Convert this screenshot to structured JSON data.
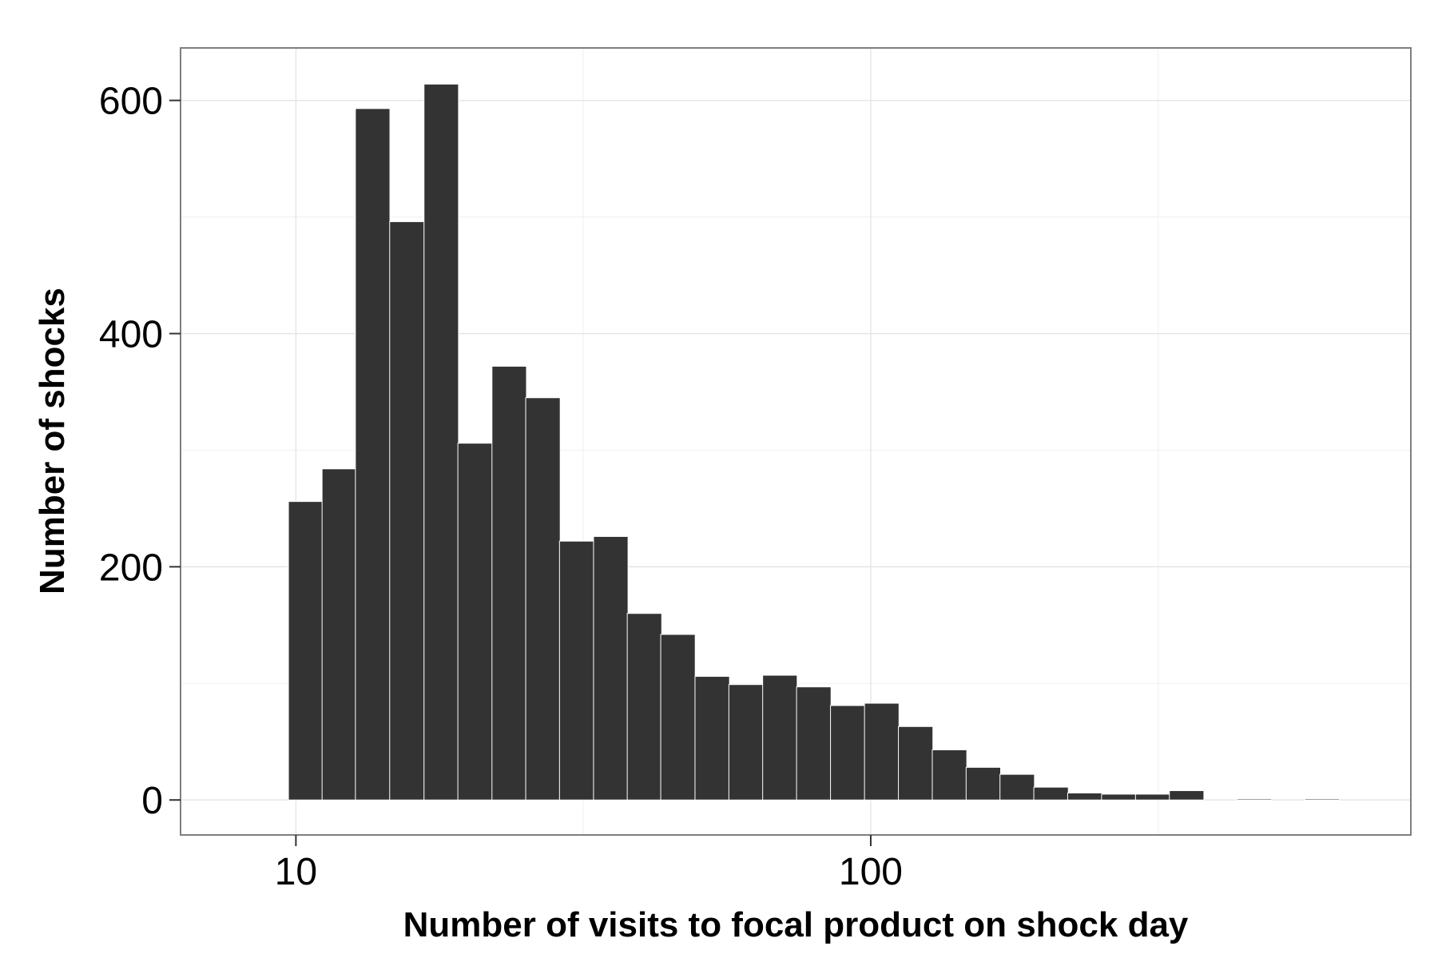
{
  "chart_data": {
    "type": "bar",
    "xlabel": "Number of visits to focal product on shock day",
    "ylabel": "Number of shocks",
    "x_scale": "log10",
    "xlim": [
      6.3,
      870
    ],
    "ylim": [
      -30,
      645
    ],
    "x_ticks": [
      10,
      100
    ],
    "x_tick_labels": [
      "10",
      "100"
    ],
    "y_ticks": [
      0,
      200,
      400,
      600
    ],
    "y_tick_labels": [
      "0",
      "200",
      "400",
      "600"
    ],
    "grid": true,
    "bin_log_width": 0.06,
    "bins": [
      {
        "x": 8.0,
        "count": 0
      },
      {
        "x": 9.1,
        "count": 0
      },
      {
        "x": 10.4,
        "count": 256
      },
      {
        "x": 11.9,
        "count": 284
      },
      {
        "x": 13.6,
        "count": 593
      },
      {
        "x": 15.6,
        "count": 496
      },
      {
        "x": 17.9,
        "count": 614
      },
      {
        "x": 20.5,
        "count": 306
      },
      {
        "x": 23.5,
        "count": 372
      },
      {
        "x": 26.9,
        "count": 345
      },
      {
        "x": 30.8,
        "count": 222
      },
      {
        "x": 35.3,
        "count": 226
      },
      {
        "x": 40.4,
        "count": 160
      },
      {
        "x": 46.2,
        "count": 142
      },
      {
        "x": 53.0,
        "count": 106
      },
      {
        "x": 60.7,
        "count": 99
      },
      {
        "x": 69.5,
        "count": 107
      },
      {
        "x": 79.6,
        "count": 97
      },
      {
        "x": 91.2,
        "count": 81
      },
      {
        "x": 104.5,
        "count": 83
      },
      {
        "x": 119.7,
        "count": 63
      },
      {
        "x": 137.1,
        "count": 43
      },
      {
        "x": 157.0,
        "count": 28
      },
      {
        "x": 179.8,
        "count": 22
      },
      {
        "x": 205.9,
        "count": 11
      },
      {
        "x": 235.8,
        "count": 6
      },
      {
        "x": 270.1,
        "count": 5
      },
      {
        "x": 309.4,
        "count": 5
      },
      {
        "x": 354.4,
        "count": 8
      },
      {
        "x": 405.9,
        "count": 0
      },
      {
        "x": 464.9,
        "count": 1
      },
      {
        "x": 532.4,
        "count": 0
      },
      {
        "x": 609.8,
        "count": 1
      },
      {
        "x": 698.4,
        "count": 0
      }
    ]
  }
}
